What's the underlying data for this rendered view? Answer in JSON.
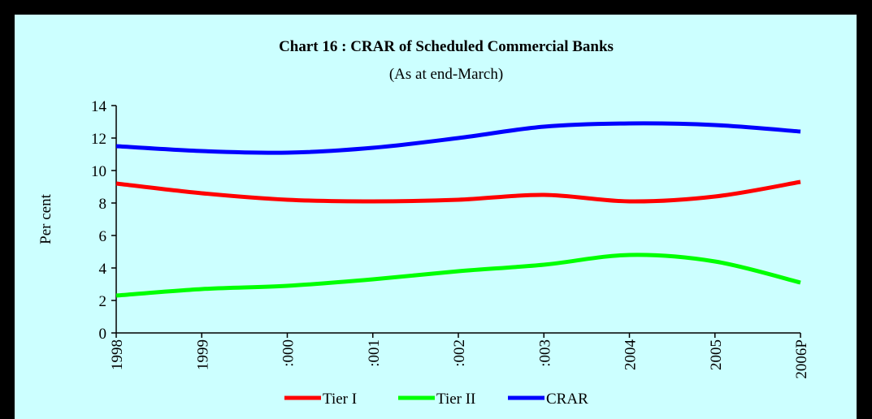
{
  "chart_data": {
    "type": "line",
    "title": "Chart 16 : CRAR of Scheduled Commercial Banks",
    "subtitle": "(As at end-March)",
    "ylabel": "Per cent",
    "categories": [
      "1998",
      "1999",
      ":000",
      ":001",
      ":002",
      ":003",
      "2004",
      "2005",
      "2006P"
    ],
    "series": [
      {
        "name": "Tier I",
        "color": "#ff0000",
        "values": [
          9.2,
          8.6,
          8.2,
          8.1,
          8.2,
          8.5,
          8.1,
          8.4,
          9.3
        ]
      },
      {
        "name": "Tier II",
        "color": "#00ff00",
        "values": [
          2.3,
          2.7,
          2.9,
          3.3,
          3.8,
          4.2,
          4.8,
          4.4,
          3.1
        ]
      },
      {
        "name": "CRAR",
        "color": "#0000ff",
        "values": [
          11.5,
          11.2,
          11.1,
          11.4,
          12.0,
          12.7,
          12.9,
          12.8,
          12.4
        ]
      }
    ],
    "ylim": [
      0,
      14
    ],
    "yticks": [
      0,
      2,
      4,
      6,
      8,
      10,
      12,
      14
    ],
    "legend": "bottom"
  }
}
